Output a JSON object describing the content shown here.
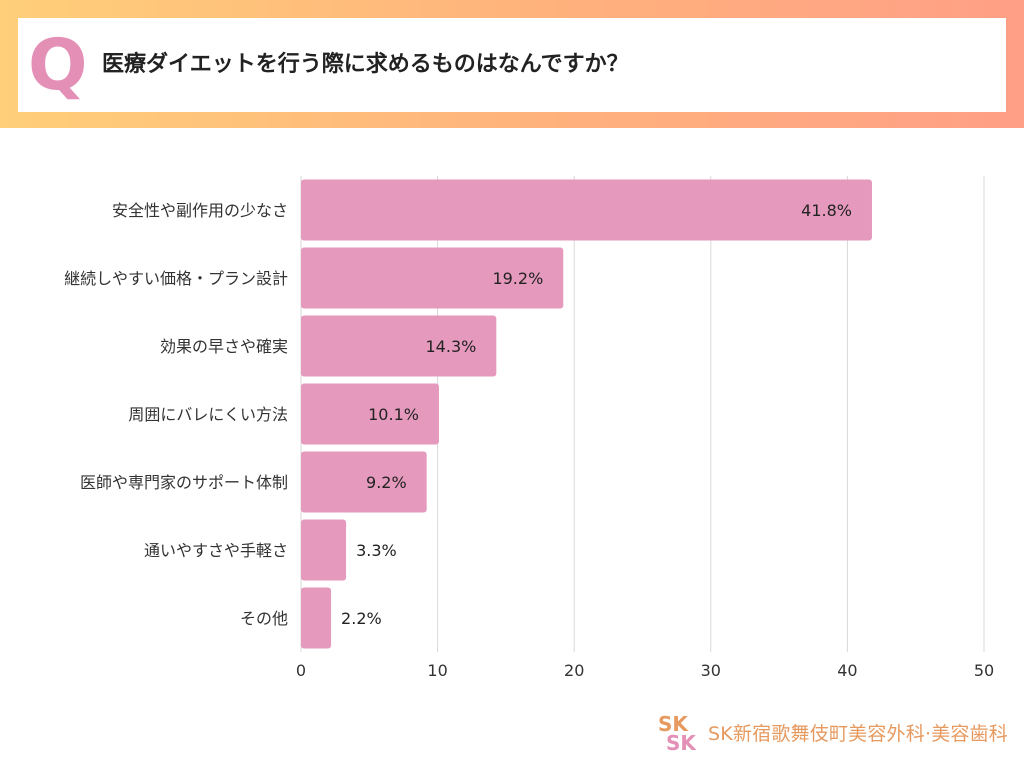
{
  "header": {
    "q_mark": "Q",
    "question": "医療ダイエットを行う際に求めるものはなんですか？"
  },
  "chart_data": {
    "type": "bar",
    "orientation": "horizontal",
    "categories": [
      "安全性や副作用の少なさ",
      "継続しやすい価格・プラン設計",
      "効果の早さや確実",
      "周囲にバレにくい方法",
      "医師や専門家のサポート体制",
      "通いやすさや手軽さ",
      "その他"
    ],
    "values": [
      41.8,
      19.2,
      14.3,
      10.1,
      9.2,
      3.3,
      2.2
    ],
    "value_labels": [
      "41.8%",
      "19.2%",
      "14.3%",
      "10.1%",
      "9.2%",
      "3.3%",
      "2.2%"
    ],
    "xlim": [
      0,
      50
    ],
    "xticks": [
      0,
      10,
      20,
      30,
      40,
      50
    ],
    "grid": true,
    "bar_color": "#e59abd",
    "grid_color": "#d9d9d9"
  },
  "footer": {
    "logo_text": "SK新宿歌舞伎町美容外科·美容歯科",
    "logo_color": "#e79a5f"
  }
}
